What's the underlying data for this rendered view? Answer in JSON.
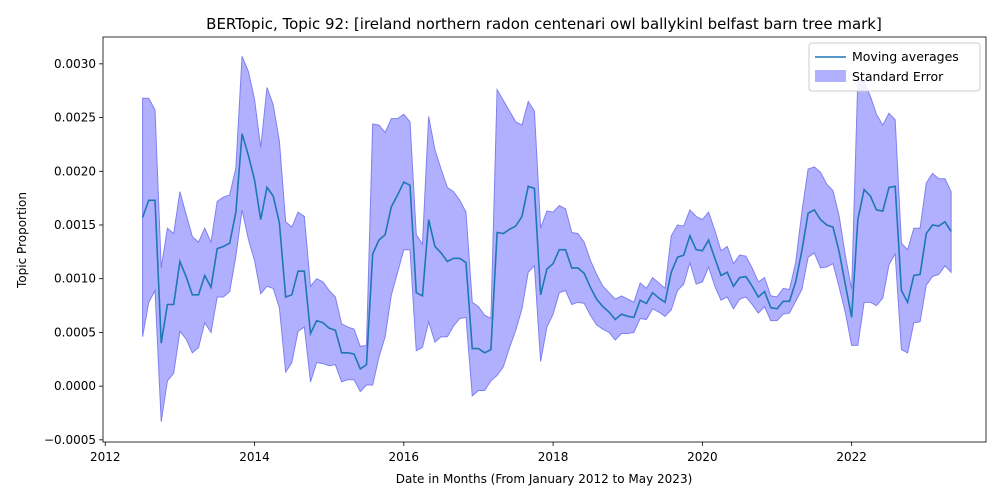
{
  "chart_data": {
    "type": "line",
    "title": "BERTopic, Topic 92: [ireland northern radon centenari owl ballykinl belfast barn tree mark]",
    "xlabel": "Date in Months (From January 2012 to May 2023)",
    "ylabel": "Topic Proportion",
    "xlim": [
      2011.97,
      2023.8
    ],
    "ylim": [
      -0.00052,
      0.00325
    ],
    "x_ticks": [
      2012,
      2014,
      2016,
      2018,
      2020,
      2022
    ],
    "x_tick_labels": [
      "2012",
      "2014",
      "2016",
      "2018",
      "2020",
      "2022"
    ],
    "y_ticks": [
      -0.0005,
      0.0,
      0.0005,
      0.001,
      0.0015,
      0.002,
      0.0025,
      0.003
    ],
    "y_tick_labels": [
      "−0.0005",
      "0.0000",
      "0.0005",
      "0.0010",
      "0.0015",
      "0.0020",
      "0.0025",
      "0.0030"
    ],
    "grid": false,
    "legend_position": "top-right",
    "colors": {
      "line": "#1f77b4",
      "band": "#b0b0ff",
      "band_edge": "#8080ee"
    },
    "series": [
      {
        "name": "Moving averages",
        "x": [
          2012.5,
          2012.583,
          2012.667,
          2012.75,
          2012.833,
          2012.917,
          2013.0,
          2013.083,
          2013.167,
          2013.25,
          2013.333,
          2013.417,
          2013.5,
          2013.583,
          2013.667,
          2013.75,
          2013.833,
          2013.917,
          2014.0,
          2014.083,
          2014.167,
          2014.25,
          2014.333,
          2014.417,
          2014.5,
          2014.583,
          2014.667,
          2014.75,
          2014.833,
          2014.917,
          2015.0,
          2015.083,
          2015.167,
          2015.25,
          2015.333,
          2015.417,
          2015.5,
          2015.583,
          2015.667,
          2015.75,
          2015.833,
          2015.917,
          2016.0,
          2016.083,
          2016.167,
          2016.25,
          2016.333,
          2016.417,
          2016.5,
          2016.583,
          2016.667,
          2016.75,
          2016.833,
          2016.917,
          2017.0,
          2017.083,
          2017.167,
          2017.25,
          2017.333,
          2017.417,
          2017.5,
          2017.583,
          2017.667,
          2017.75,
          2017.833,
          2017.917,
          2018.0,
          2018.083,
          2018.167,
          2018.25,
          2018.333,
          2018.417,
          2018.5,
          2018.583,
          2018.667,
          2018.75,
          2018.833,
          2018.917,
          2019.0,
          2019.083,
          2019.167,
          2019.25,
          2019.333,
          2019.417,
          2019.5,
          2019.583,
          2019.667,
          2019.75,
          2019.833,
          2019.917,
          2020.0,
          2020.083,
          2020.167,
          2020.25,
          2020.333,
          2020.417,
          2020.5,
          2020.583,
          2020.667,
          2020.75,
          2020.833,
          2020.917,
          2021.0,
          2021.083,
          2021.167,
          2021.25,
          2021.333,
          2021.417,
          2021.5,
          2021.583,
          2021.667,
          2021.75,
          2021.833,
          2021.917,
          2022.0,
          2022.083,
          2022.167,
          2022.25,
          2022.333,
          2022.417,
          2022.5,
          2022.583,
          2022.667,
          2022.75,
          2022.833,
          2022.917,
          2023.0,
          2023.083,
          2023.167,
          2023.25,
          2023.333
        ],
        "values": [
          0.00157,
          0.00173,
          0.00173,
          0.0004,
          0.00076,
          0.00076,
          0.00116,
          0.00102,
          0.00085,
          0.00085,
          0.00103,
          0.00092,
          0.00128,
          0.0013,
          0.00133,
          0.00162,
          0.00235,
          0.00215,
          0.00192,
          0.00155,
          0.00185,
          0.00177,
          0.00152,
          0.00083,
          0.00085,
          0.00107,
          0.00107,
          0.00049,
          0.00061,
          0.00059,
          0.00054,
          0.00052,
          0.00031,
          0.00031,
          0.0003,
          0.00016,
          0.0002,
          0.00123,
          0.00136,
          0.00141,
          0.00167,
          0.00178,
          0.0019,
          0.00187,
          0.00087,
          0.00084,
          0.00155,
          0.0013,
          0.00124,
          0.00116,
          0.00119,
          0.00119,
          0.00115,
          0.00035,
          0.00035,
          0.00031,
          0.00034,
          0.00143,
          0.00142,
          0.00146,
          0.00149,
          0.00158,
          0.00186,
          0.00184,
          0.00085,
          0.00109,
          0.00114,
          0.00127,
          0.00127,
          0.0011,
          0.0011,
          0.00105,
          0.00092,
          0.00081,
          0.00074,
          0.00069,
          0.00062,
          0.00067,
          0.00065,
          0.00064,
          0.0008,
          0.00077,
          0.00087,
          0.00082,
          0.00078,
          0.00106,
          0.0012,
          0.00122,
          0.0014,
          0.00127,
          0.00126,
          0.00136,
          0.00119,
          0.00103,
          0.00106,
          0.00093,
          0.00101,
          0.00102,
          0.00093,
          0.00083,
          0.00088,
          0.00073,
          0.00072,
          0.00079,
          0.00079,
          0.00097,
          0.00126,
          0.00161,
          0.00164,
          0.00155,
          0.0015,
          0.00148,
          0.00125,
          0.00094,
          0.00064,
          0.00155,
          0.00183,
          0.00177,
          0.00164,
          0.00163,
          0.00185,
          0.00186,
          0.00089,
          0.00078,
          0.00103,
          0.00104,
          0.00142,
          0.0015,
          0.00149,
          0.00153,
          0.00144
        ]
      },
      {
        "name": "Standard Error",
        "x": [
          2012.5,
          2012.583,
          2012.667,
          2012.75,
          2012.833,
          2012.917,
          2013.0,
          2013.083,
          2013.167,
          2013.25,
          2013.333,
          2013.417,
          2013.5,
          2013.583,
          2013.667,
          2013.75,
          2013.833,
          2013.917,
          2014.0,
          2014.083,
          2014.167,
          2014.25,
          2014.333,
          2014.417,
          2014.5,
          2014.583,
          2014.667,
          2014.75,
          2014.833,
          2014.917,
          2015.0,
          2015.083,
          2015.167,
          2015.25,
          2015.333,
          2015.417,
          2015.5,
          2015.583,
          2015.667,
          2015.75,
          2015.833,
          2015.917,
          2016.0,
          2016.083,
          2016.167,
          2016.25,
          2016.333,
          2016.417,
          2016.5,
          2016.583,
          2016.667,
          2016.75,
          2016.833,
          2016.917,
          2017.0,
          2017.083,
          2017.167,
          2017.25,
          2017.333,
          2017.417,
          2017.5,
          2017.583,
          2017.667,
          2017.75,
          2017.833,
          2017.917,
          2018.0,
          2018.083,
          2018.167,
          2018.25,
          2018.333,
          2018.417,
          2018.5,
          2018.583,
          2018.667,
          2018.75,
          2018.833,
          2018.917,
          2019.0,
          2019.083,
          2019.167,
          2019.25,
          2019.333,
          2019.417,
          2019.5,
          2019.583,
          2019.667,
          2019.75,
          2019.833,
          2019.917,
          2020.0,
          2020.083,
          2020.167,
          2020.25,
          2020.333,
          2020.417,
          2020.5,
          2020.583,
          2020.667,
          2020.75,
          2020.833,
          2020.917,
          2021.0,
          2021.083,
          2021.167,
          2021.25,
          2021.333,
          2021.417,
          2021.5,
          2021.583,
          2021.667,
          2021.75,
          2021.833,
          2021.917,
          2022.0,
          2022.083,
          2022.167,
          2022.25,
          2022.333,
          2022.417,
          2022.5,
          2022.583,
          2022.667,
          2022.75,
          2022.833,
          2022.917,
          2023.0,
          2023.083,
          2023.167,
          2023.25,
          2023.333
        ],
        "upper": [
          0.00268,
          0.00268,
          0.00257,
          0.0011,
          0.00147,
          0.00142,
          0.00181,
          0.0016,
          0.00139,
          0.00134,
          0.00147,
          0.00134,
          0.00172,
          0.00176,
          0.00178,
          0.00203,
          0.00307,
          0.00293,
          0.00267,
          0.00222,
          0.00278,
          0.00262,
          0.00228,
          0.00153,
          0.00148,
          0.00162,
          0.00158,
          0.00093,
          0.001,
          0.00097,
          0.00089,
          0.00083,
          0.00058,
          0.00055,
          0.00053,
          0.00037,
          0.00038,
          0.00244,
          0.00243,
          0.00236,
          0.00249,
          0.00249,
          0.00253,
          0.00246,
          0.00141,
          0.00132,
          0.00251,
          0.0022,
          0.00202,
          0.00185,
          0.00181,
          0.00173,
          0.00162,
          0.00078,
          0.00074,
          0.00066,
          0.00063,
          0.00276,
          0.00266,
          0.00256,
          0.00246,
          0.00243,
          0.00265,
          0.00256,
          0.00147,
          0.00163,
          0.00162,
          0.00168,
          0.00165,
          0.00143,
          0.00142,
          0.00134,
          0.00117,
          0.00104,
          0.00093,
          0.00087,
          0.00081,
          0.00084,
          0.00081,
          0.00078,
          0.00096,
          0.00091,
          0.00101,
          0.00096,
          0.00091,
          0.0014,
          0.0015,
          0.00149,
          0.00164,
          0.00158,
          0.00155,
          0.00162,
          0.00145,
          0.00126,
          0.0013,
          0.00114,
          0.00122,
          0.00121,
          0.0011,
          0.00097,
          0.00101,
          0.00084,
          0.00083,
          0.00091,
          0.0009,
          0.00115,
          0.00162,
          0.00202,
          0.00204,
          0.00199,
          0.00188,
          0.00182,
          0.00158,
          0.00121,
          0.0009,
          0.00286,
          0.00283,
          0.0027,
          0.00253,
          0.00243,
          0.00254,
          0.00248,
          0.00133,
          0.00127,
          0.00147,
          0.00147,
          0.00189,
          0.00198,
          0.00193,
          0.00193,
          0.00181
        ],
        "lower": [
          0.00046,
          0.00078,
          0.00089,
          -0.00033,
          5e-05,
          0.00012,
          0.00051,
          0.00044,
          0.00031,
          0.00036,
          0.00059,
          0.0005,
          0.00083,
          0.00083,
          0.00088,
          0.00121,
          0.00164,
          0.00137,
          0.00117,
          0.00086,
          0.00093,
          0.00091,
          0.00073,
          0.00013,
          0.00022,
          0.00051,
          0.00055,
          4e-05,
          0.00022,
          0.00021,
          0.00019,
          0.0002,
          4e-05,
          6e-05,
          6e-05,
          -5e-05,
          1e-05,
          1e-05,
          0.00027,
          0.00046,
          0.00085,
          0.00106,
          0.00127,
          0.00127,
          0.00033,
          0.00036,
          0.0006,
          0.00041,
          0.00046,
          0.00046,
          0.00056,
          0.00063,
          0.00064,
          -9e-05,
          -4e-05,
          -4e-05,
          5e-05,
          0.0001,
          0.00018,
          0.00036,
          0.00052,
          0.00072,
          0.00106,
          0.00112,
          0.00023,
          0.00055,
          0.00067,
          0.00087,
          0.00089,
          0.00076,
          0.00078,
          0.00077,
          0.00066,
          0.00057,
          0.00053,
          0.0005,
          0.00043,
          0.00049,
          0.00049,
          0.0005,
          0.00063,
          0.00062,
          0.00072,
          0.00069,
          0.00065,
          0.00071,
          0.00089,
          0.00095,
          0.00115,
          0.00095,
          0.00097,
          0.00111,
          0.00093,
          0.0008,
          0.00083,
          0.00072,
          0.00081,
          0.00083,
          0.00076,
          0.00068,
          0.00074,
          0.00061,
          0.00061,
          0.00067,
          0.00068,
          0.00079,
          0.0009,
          0.0012,
          0.00124,
          0.0011,
          0.00111,
          0.00114,
          0.00092,
          0.00068,
          0.00038,
          0.00038,
          0.00078,
          0.00078,
          0.00075,
          0.00082,
          0.00113,
          0.00123,
          0.00034,
          0.00031,
          0.00059,
          0.0006,
          0.00094,
          0.00102,
          0.00104,
          0.00112,
          0.00106
        ]
      }
    ]
  }
}
